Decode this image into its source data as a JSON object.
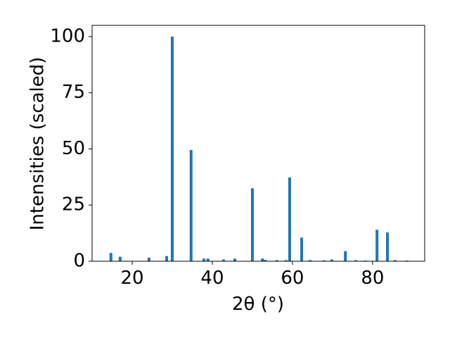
{
  "chart_data": {
    "type": "bar",
    "xlabel": "2θ (°)",
    "ylabel": "Intensities (scaled)",
    "x": [
      14.7,
      17.0,
      24.2,
      28.6,
      30.0,
      34.7,
      37.9,
      38.9,
      42.8,
      45.6,
      50.0,
      52.5,
      53.2,
      56.1,
      58.4,
      59.3,
      62.3,
      64.4,
      67.9,
      69.8,
      73.2,
      75.8,
      78.2,
      81.1,
      83.7,
      85.6,
      88.6
    ],
    "values": [
      3.7,
      2.0,
      1.6,
      2.3,
      100,
      49.5,
      1.2,
      1.2,
      0.8,
      1.2,
      32.5,
      1.2,
      0.6,
      0.5,
      0.5,
      37.3,
      10.5,
      0.5,
      0.4,
      0.8,
      4.5,
      0.5,
      0.3,
      14.0,
      12.8,
      0.5,
      0.3
    ],
    "color": "#1f77b4",
    "xlim": [
      10,
      93
    ],
    "xticks": [
      20,
      40,
      60,
      80
    ],
    "ylim": [
      0,
      105
    ],
    "yticks": [
      0,
      25,
      50,
      75,
      100
    ]
  }
}
